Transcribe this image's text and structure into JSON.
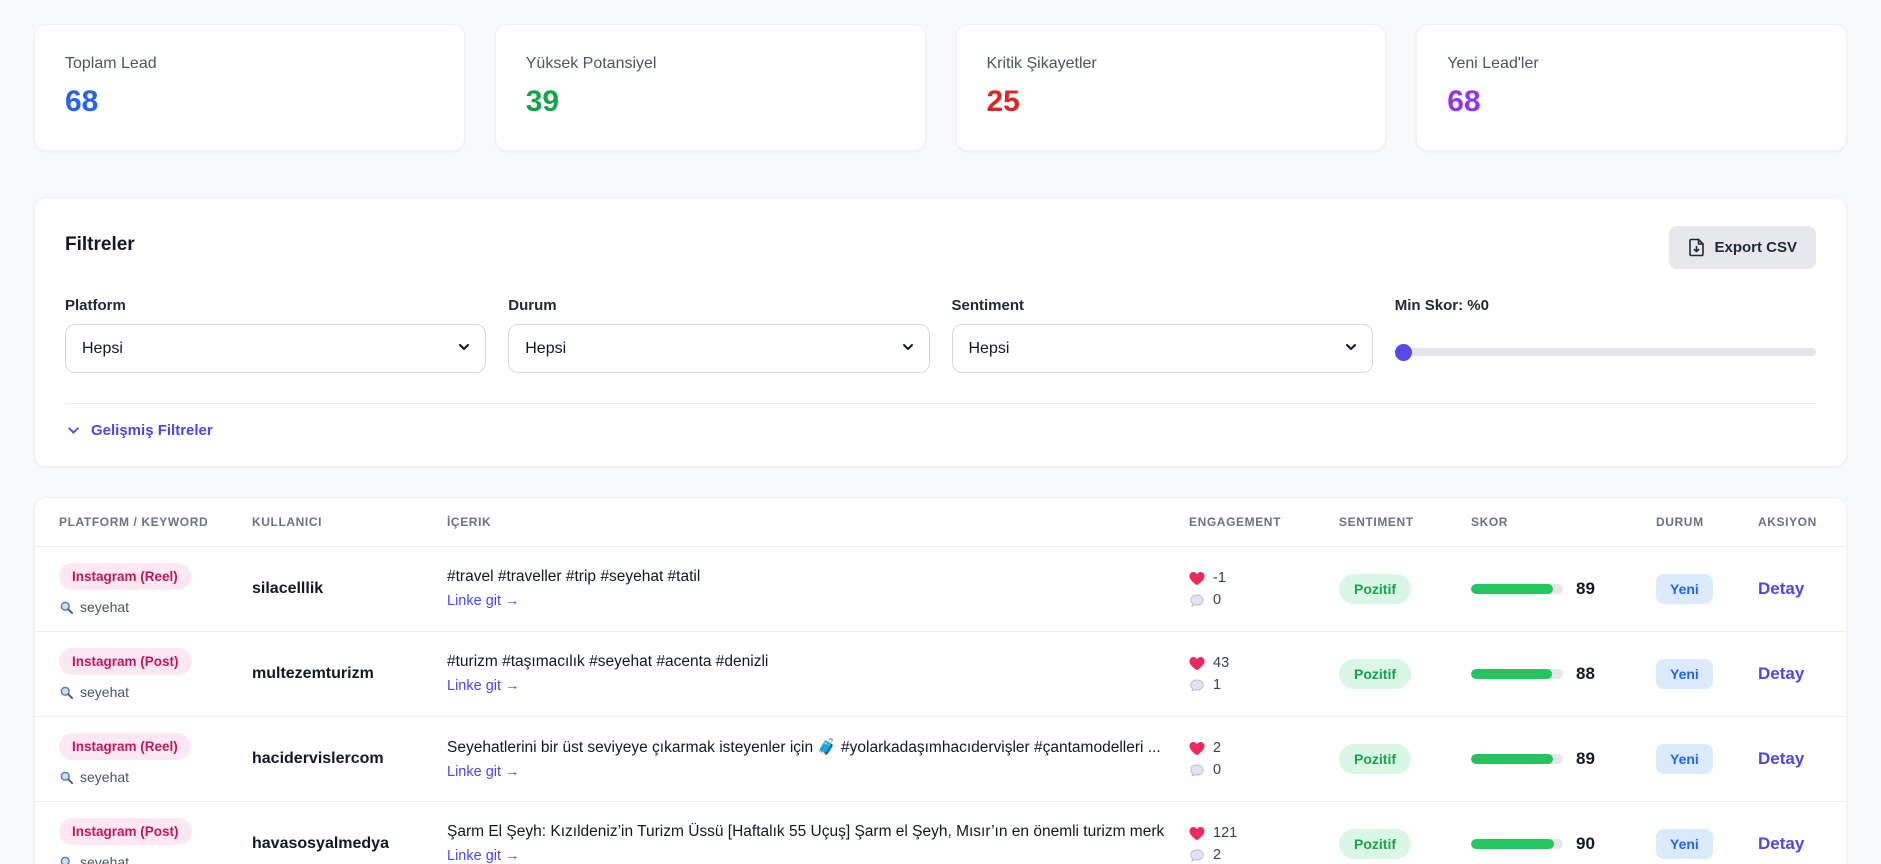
{
  "stats": [
    {
      "label": "Toplam Lead",
      "value": "68",
      "color": "#2563eb"
    },
    {
      "label": "Yüksek Potansiyel",
      "value": "39",
      "color": "#16a34a"
    },
    {
      "label": "Kritik Şikayetler",
      "value": "25",
      "color": "#dc2626"
    },
    {
      "label": "Yeni Lead'ler",
      "value": "68",
      "color": "#9333ea"
    }
  ],
  "filters": {
    "title": "Filtreler",
    "export_label": "Export CSV",
    "fields": [
      {
        "label": "Platform",
        "value": "Hepsi"
      },
      {
        "label": "Durum",
        "value": "Hepsi"
      },
      {
        "label": "Sentiment",
        "value": "Hepsi"
      }
    ],
    "min_skor_label": "Min Skor: %0",
    "slider_value": "0",
    "advanced_label": "Gelişmiş Filtreler"
  },
  "table": {
    "headers": [
      "PLATFORM / KEYWORD",
      "KULLANICI",
      "İÇERIK",
      "ENGAGEMENT",
      "SENTIMENT",
      "SKOR",
      "DURUM",
      "AKSIYON"
    ],
    "link_label": "Linke git →",
    "rows": [
      {
        "platform": "Instagram (Reel)",
        "keyword": "seyehat",
        "username": "silacelllik",
        "content": "#travel #traveller #trip #seyehat #tatil",
        "likes": "-1",
        "comments": "0",
        "sentiment": "Pozitif",
        "score": 89,
        "status": "Yeni",
        "action": "Detay"
      },
      {
        "platform": "Instagram (Post)",
        "keyword": "seyehat",
        "username": "multezemturizm",
        "content": "#turizm #taşımacılık #seyehat #acenta #denizli",
        "likes": "43",
        "comments": "1",
        "sentiment": "Pozitif",
        "score": 88,
        "status": "Yeni",
        "action": "Detay"
      },
      {
        "platform": "Instagram (Reel)",
        "keyword": "seyehat",
        "username": "hacidervislercom",
        "content": "Seyehatlerini bir üst seviyeye çıkarmak isteyenler için 🧳  #yolarkadaşımhacıdervişler #çantamodelleri ...",
        "likes": "2",
        "comments": "0",
        "sentiment": "Pozitif",
        "score": 89,
        "status": "Yeni",
        "action": "Detay"
      },
      {
        "platform": "Instagram (Post)",
        "keyword": "seyehat",
        "username": "havasosyalmedya",
        "content": "Şarm El Şeyh: Kızıldeniz’in Turizm Üssü [Haftalık 55 Uçuş] Şarm el Şeyh, Mısır’ın en önemli turizm merk...",
        "likes": "121",
        "comments": "2",
        "sentiment": "Pozitif",
        "score": 90,
        "status": "Yeni",
        "action": "Detay"
      }
    ]
  },
  "colors": {
    "accent": "#4f46e5",
    "score_fill": "#22c55e",
    "heart": "#ed2a5f",
    "positive_bg": "#daf6e5",
    "positive_text": "#16a34a",
    "status_bg": "#dbeafe",
    "status_text": "#2563eb",
    "platform_bg": "#fce7f3",
    "platform_text": "#be185d"
  }
}
